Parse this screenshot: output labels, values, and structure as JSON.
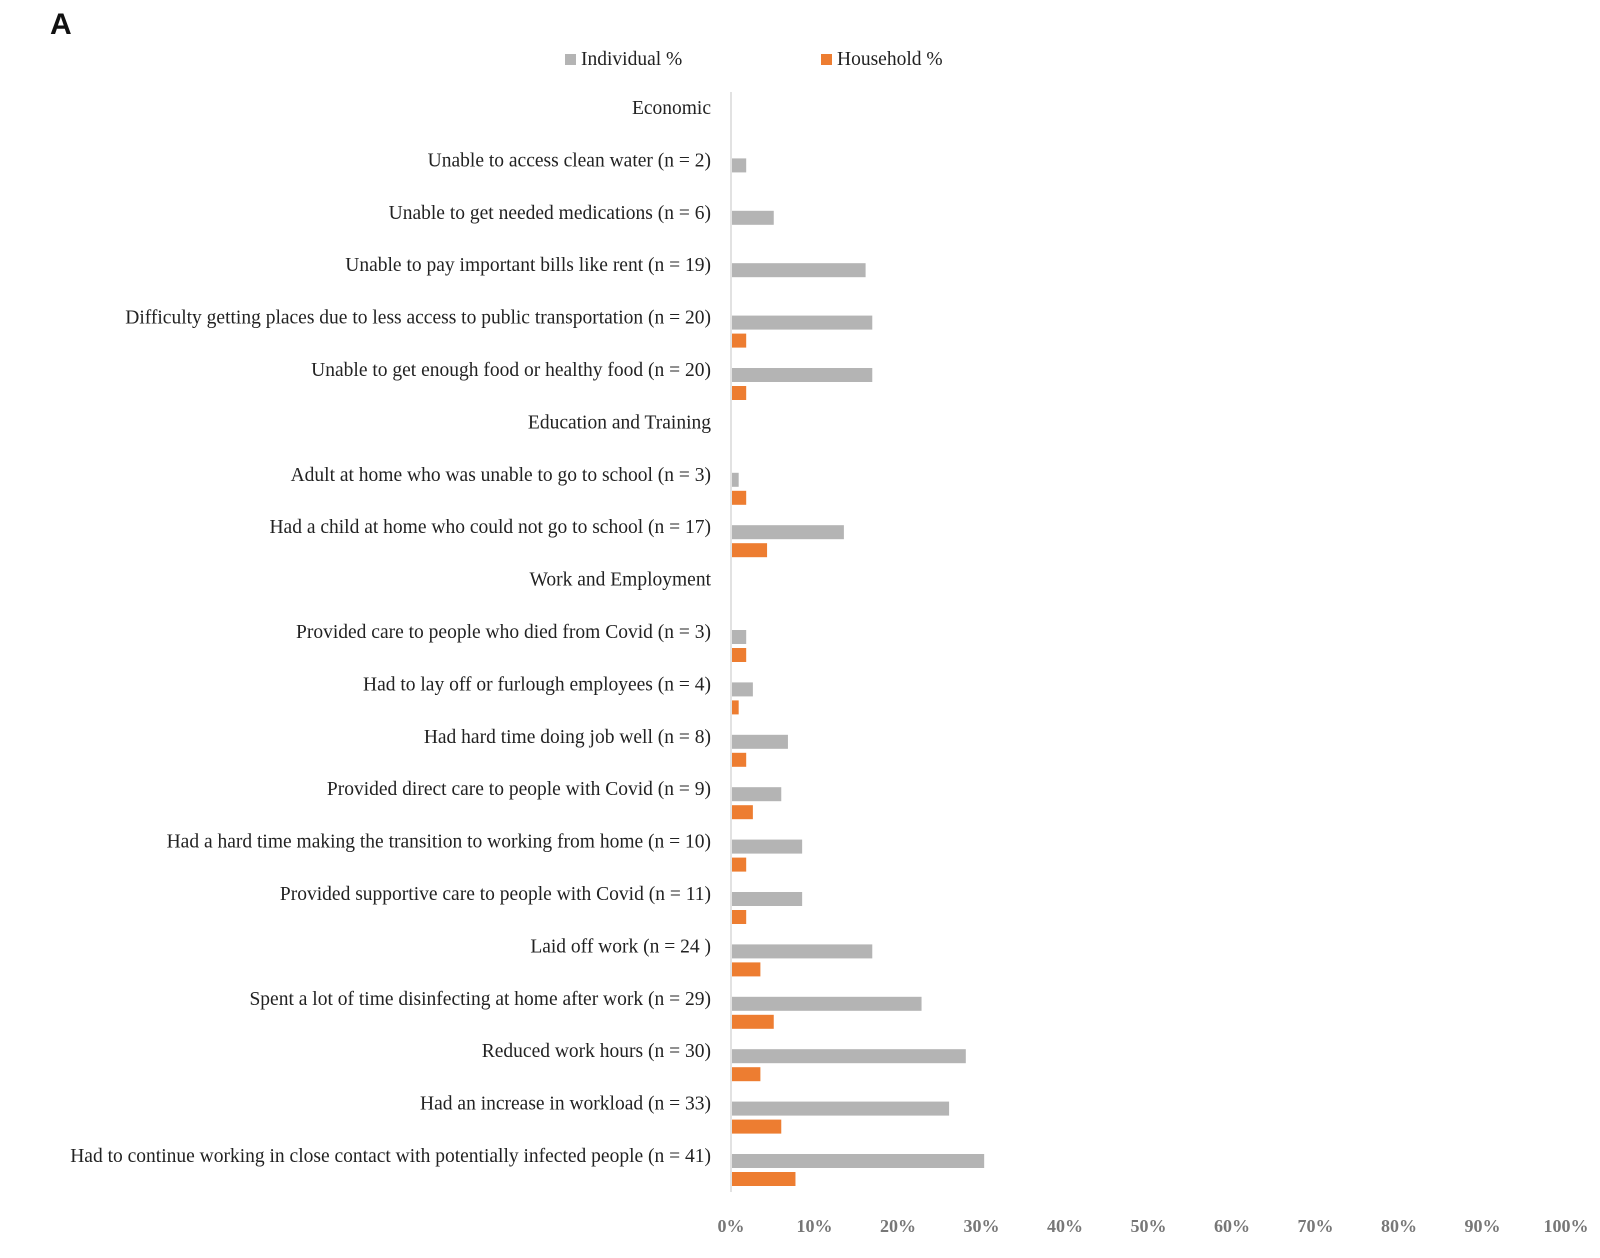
{
  "panel_label": "A",
  "colors": {
    "individual": "#b4b4b4",
    "household": "#ed7d31",
    "axis": "#d9d9d9"
  },
  "chart_data": {
    "type": "bar",
    "orientation": "horizontal",
    "title": "",
    "xlabel": "",
    "ylabel": "",
    "xlim": [
      0,
      100
    ],
    "x_ticks": [
      "0%",
      "10%",
      "20%",
      "30%",
      "40%",
      "50%",
      "60%",
      "70%",
      "80%",
      "90%",
      "100%"
    ],
    "legend": [
      "Individual %",
      "Household %"
    ],
    "legend_position": "top",
    "categories": [
      "Economic",
      "Unable to access clean water (n = 2)",
      "Unable to get needed medications (n = 6)",
      "Unable to pay important bills like rent (n = 19)",
      "Difficulty getting places due to less access to public transportation (n = 20)",
      "Unable to get enough food or healthy food (n = 20)",
      "Education and Training",
      "Adult at home who was unable to go to school (n = 3)",
      "Had a child at home who could not go to school (n = 17)",
      "Work and Employment ",
      "Provided care to people who died from Covid (n = 3)",
      "Had to lay off or furlough employees (n = 4)",
      "Had hard time doing job well (n = 8)",
      "Provided direct care to people with Covid (n = 9)",
      "Had a hard time making the transition to working from home (n = 10)",
      "Provided supportive care to people with Covid (n = 11)",
      "Laid off work (n = 24 )",
      "Spent a lot of time disinfecting at home after work (n = 29)",
      "Reduced work hours (n = 30)",
      "Had an increase in workload (n = 33)",
      "Had to continue working in close contact with potentially infected people (n = 41)"
    ],
    "series": [
      {
        "name": "Individual %",
        "values": [
          0,
          1.7,
          5,
          16,
          16.8,
          16.8,
          0,
          0.8,
          13.4,
          0,
          1.7,
          2.5,
          6.7,
          5.9,
          8.4,
          8.4,
          16.8,
          22.7,
          28,
          26,
          30.2
        ]
      },
      {
        "name": "Household %",
        "values": [
          0,
          0,
          0,
          0,
          1.7,
          1.7,
          0,
          1.7,
          4.2,
          0,
          1.7,
          0.8,
          1.7,
          2.5,
          1.7,
          1.7,
          3.4,
          5,
          3.4,
          5.9,
          7.6
        ]
      }
    ]
  }
}
